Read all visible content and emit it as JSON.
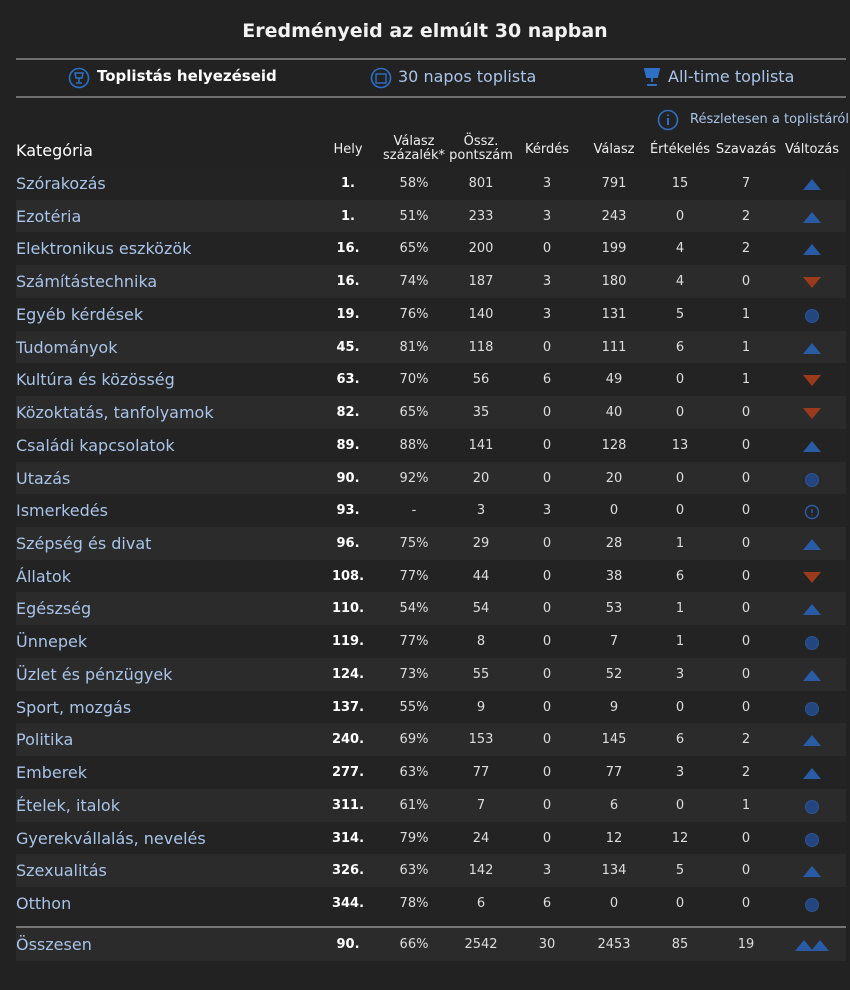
{
  "header": {
    "title": "Eredményeid az elmúlt 30 napban"
  },
  "tabs": [
    "Toplistás helyezéseid",
    "30 napos toplista",
    "All-time toplista"
  ],
  "details_link": "Részletesen a toplistáról",
  "table": {
    "columns": [
      "Kategória",
      "Hely",
      "Válasz százalék*",
      "Össz. pontszám",
      "Kérdés",
      "Válasz",
      "Értékelés",
      "Szavazás",
      "Változás"
    ],
    "rows": [
      [
        "Szórakozás",
        "1.",
        "58%",
        "801",
        "3",
        "791",
        "15",
        "7"
      ],
      [
        "Ezotéria",
        "1.",
        "51%",
        "233",
        "3",
        "243",
        "0",
        "2"
      ],
      [
        "Elektronikus eszközök",
        "16.",
        "65%",
        "200",
        "0",
        "199",
        "4",
        "2"
      ],
      [
        "Számítástechnika",
        "16.",
        "74%",
        "187",
        "3",
        "180",
        "4",
        "0"
      ],
      [
        "Egyéb kérdések",
        "19.",
        "76%",
        "140",
        "3",
        "131",
        "5",
        "1"
      ],
      [
        "Tudományok",
        "45.",
        "81%",
        "118",
        "0",
        "111",
        "6",
        "1"
      ],
      [
        "Kultúra és közösség",
        "63.",
        "70%",
        "56",
        "6",
        "49",
        "0",
        "1"
      ],
      [
        "Közoktatás, tanfolyamok",
        "82.",
        "65%",
        "35",
        "0",
        "40",
        "0",
        "0"
      ],
      [
        "Családi kapcsolatok",
        "89.",
        "88%",
        "141",
        "0",
        "128",
        "13",
        "0"
      ],
      [
        "Utazás",
        "90.",
        "92%",
        "20",
        "0",
        "20",
        "0",
        "0"
      ],
      [
        "Ismerkedés",
        "93.",
        "-",
        "3",
        "3",
        "0",
        "0",
        "0"
      ],
      [
        "Szépség és divat",
        "96.",
        "75%",
        "29",
        "0",
        "28",
        "1",
        "0"
      ],
      [
        "Állatok",
        "108.",
        "77%",
        "44",
        "0",
        "38",
        "6",
        "0"
      ],
      [
        "Egészség",
        "110.",
        "54%",
        "54",
        "0",
        "53",
        "1",
        "0"
      ],
      [
        "Ünnepek",
        "119.",
        "77%",
        "8",
        "0",
        "7",
        "1",
        "0"
      ],
      [
        "Üzlet és pénzügyek",
        "124.",
        "73%",
        "55",
        "0",
        "52",
        "3",
        "0"
      ],
      [
        "Sport, mozgás",
        "137.",
        "55%",
        "9",
        "0",
        "9",
        "0",
        "0"
      ],
      [
        "Politika",
        "240.",
        "69%",
        "153",
        "0",
        "145",
        "6",
        "2"
      ],
      [
        "Emberek",
        "277.",
        "63%",
        "77",
        "0",
        "77",
        "3",
        "2"
      ],
      [
        "Ételek, italok",
        "311.",
        "61%",
        "7",
        "0",
        "6",
        "0",
        "1"
      ],
      [
        "Gyerekvállalás, nevelés",
        "314.",
        "79%",
        "24",
        "0",
        "12",
        "12",
        "0"
      ],
      [
        "Szexualitás",
        "326.",
        "63%",
        "142",
        "3",
        "134",
        "5",
        "0"
      ],
      [
        "Otthon",
        "344.",
        "78%",
        "6",
        "6",
        "0",
        "0",
        "0"
      ]
    ],
    "trends": [
      "up",
      "up",
      "up",
      "down",
      "same",
      "up",
      "down",
      "down",
      "up",
      "same",
      "new",
      "up",
      "down",
      "up",
      "same",
      "up",
      "same",
      "up",
      "up",
      "same",
      "same",
      "up",
      "same"
    ],
    "total": [
      "Összesen",
      "90.",
      "66%",
      "2542",
      "30",
      "2453",
      "85",
      "19"
    ],
    "total_trend": "up2"
  }
}
